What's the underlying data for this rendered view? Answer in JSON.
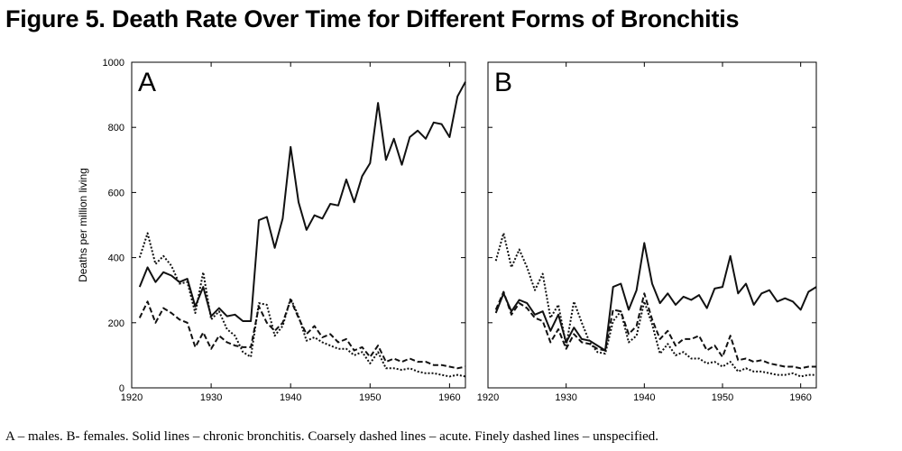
{
  "title": "Figure 5. Death Rate Over Time for Different Forms of Bronchitis",
  "caption": "A – males. B- females. Solid lines – chronic bronchitis. Coarsely dashed lines – acute. Finely dashed lines – unspecified.",
  "chart_data": [
    {
      "type": "line",
      "panel_label": "A",
      "ylabel": "Deaths per million living",
      "xlim": [
        1920,
        1962
      ],
      "ylim": [
        0,
        1000
      ],
      "xticks": [
        1920,
        1930,
        1940,
        1950,
        1960
      ],
      "yticks": [
        0,
        200,
        400,
        600,
        800,
        1000
      ],
      "x": [
        1921,
        1922,
        1923,
        1924,
        1925,
        1926,
        1927,
        1928,
        1929,
        1930,
        1931,
        1932,
        1933,
        1934,
        1935,
        1936,
        1937,
        1938,
        1939,
        1940,
        1941,
        1942,
        1943,
        1944,
        1945,
        1946,
        1947,
        1948,
        1949,
        1950,
        1951,
        1952,
        1953,
        1954,
        1955,
        1956,
        1957,
        1958,
        1959,
        1960,
        1961,
        1962
      ],
      "series": [
        {
          "style": "solid",
          "values": [
            310,
            370,
            325,
            355,
            345,
            325,
            335,
            250,
            310,
            220,
            245,
            220,
            225,
            205,
            205,
            515,
            525,
            430,
            520,
            740,
            570,
            485,
            530,
            520,
            565,
            560,
            640,
            570,
            650,
            690,
            875,
            700,
            765,
            685,
            770,
            790,
            765,
            815,
            810,
            770,
            895,
            940
          ]
        },
        {
          "style": "coarse-dashed",
          "values": [
            215,
            265,
            200,
            245,
            230,
            210,
            200,
            125,
            170,
            120,
            160,
            140,
            130,
            125,
            125,
            250,
            200,
            175,
            200,
            270,
            215,
            165,
            190,
            155,
            165,
            140,
            150,
            115,
            125,
            95,
            130,
            80,
            90,
            80,
            90,
            80,
            80,
            70,
            70,
            65,
            60,
            65
          ]
        },
        {
          "style": "fine-dashed",
          "values": [
            400,
            475,
            380,
            405,
            375,
            320,
            325,
            230,
            355,
            210,
            235,
            180,
            160,
            110,
            95,
            260,
            255,
            160,
            190,
            275,
            220,
            145,
            155,
            140,
            130,
            120,
            120,
            100,
            110,
            75,
            110,
            60,
            60,
            55,
            60,
            50,
            45,
            45,
            40,
            35,
            40,
            35
          ]
        }
      ]
    },
    {
      "type": "line",
      "panel_label": "B",
      "ylabel": "",
      "xlim": [
        1920,
        1962
      ],
      "ylim": [
        0,
        1000
      ],
      "xticks": [
        1920,
        1930,
        1940,
        1950,
        1960
      ],
      "yticks": [
        0,
        200,
        400,
        600,
        800,
        1000
      ],
      "x": [
        1921,
        1922,
        1923,
        1924,
        1925,
        1926,
        1927,
        1928,
        1929,
        1930,
        1931,
        1932,
        1933,
        1934,
        1935,
        1936,
        1937,
        1938,
        1939,
        1940,
        1941,
        1942,
        1943,
        1944,
        1945,
        1946,
        1947,
        1948,
        1949,
        1950,
        1951,
        1952,
        1953,
        1954,
        1955,
        1956,
        1957,
        1958,
        1959,
        1960,
        1961,
        1962
      ],
      "series": [
        {
          "style": "solid",
          "values": [
            230,
            290,
            235,
            270,
            260,
            225,
            235,
            175,
            225,
            140,
            185,
            150,
            145,
            130,
            115,
            310,
            320,
            240,
            300,
            445,
            320,
            260,
            290,
            255,
            280,
            270,
            285,
            245,
            305,
            310,
            405,
            290,
            320,
            255,
            290,
            300,
            265,
            275,
            265,
            240,
            295,
            310
          ]
        },
        {
          "style": "coarse-dashed",
          "values": [
            240,
            295,
            225,
            260,
            245,
            215,
            205,
            140,
            180,
            120,
            165,
            140,
            135,
            120,
            115,
            240,
            235,
            165,
            190,
            290,
            210,
            150,
            175,
            130,
            150,
            150,
            160,
            115,
            130,
            95,
            160,
            85,
            90,
            80,
            85,
            75,
            70,
            65,
            65,
            60,
            65,
            65
          ]
        },
        {
          "style": "fine-dashed",
          "values": [
            390,
            475,
            370,
            425,
            370,
            300,
            350,
            215,
            255,
            130,
            265,
            200,
            140,
            110,
            105,
            205,
            235,
            140,
            160,
            265,
            195,
            105,
            135,
            100,
            110,
            90,
            90,
            75,
            80,
            65,
            80,
            50,
            60,
            50,
            50,
            45,
            40,
            40,
            45,
            35,
            40,
            40
          ]
        }
      ]
    }
  ]
}
